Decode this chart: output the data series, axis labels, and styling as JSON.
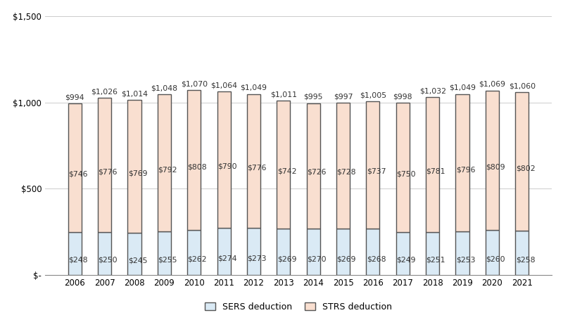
{
  "years": [
    2006,
    2007,
    2008,
    2009,
    2010,
    2011,
    2012,
    2013,
    2014,
    2015,
    2016,
    2017,
    2018,
    2019,
    2020,
    2021
  ],
  "sers": [
    248,
    250,
    245,
    255,
    262,
    274,
    273,
    269,
    270,
    269,
    268,
    249,
    251,
    253,
    260,
    258
  ],
  "strs": [
    746,
    776,
    769,
    792,
    808,
    790,
    776,
    742,
    726,
    728,
    737,
    750,
    781,
    796,
    809,
    802
  ],
  "totals": [
    994,
    1026,
    1014,
    1048,
    1070,
    1064,
    1049,
    1011,
    995,
    997,
    1005,
    998,
    1032,
    1049,
    1069,
    1060
  ],
  "sers_color": "#daeaf5",
  "strs_color": "#f9dfd0",
  "bar_edge_color": "#555555",
  "bar_edge_width": 1.0,
  "ylim": [
    0,
    1500
  ],
  "yticks": [
    0,
    500,
    1000,
    1500
  ],
  "ytick_labels": [
    "$-",
    "$500",
    "$1,000",
    "$1,500"
  ],
  "legend_labels": [
    "SERS deduction",
    "STRS deduction"
  ],
  "background_color": "#ffffff",
  "grid_color": "#cccccc",
  "label_fontsize": 7.8,
  "axis_fontsize": 8.5,
  "figsize": [
    8.0,
    4.55
  ],
  "dpi": 100
}
